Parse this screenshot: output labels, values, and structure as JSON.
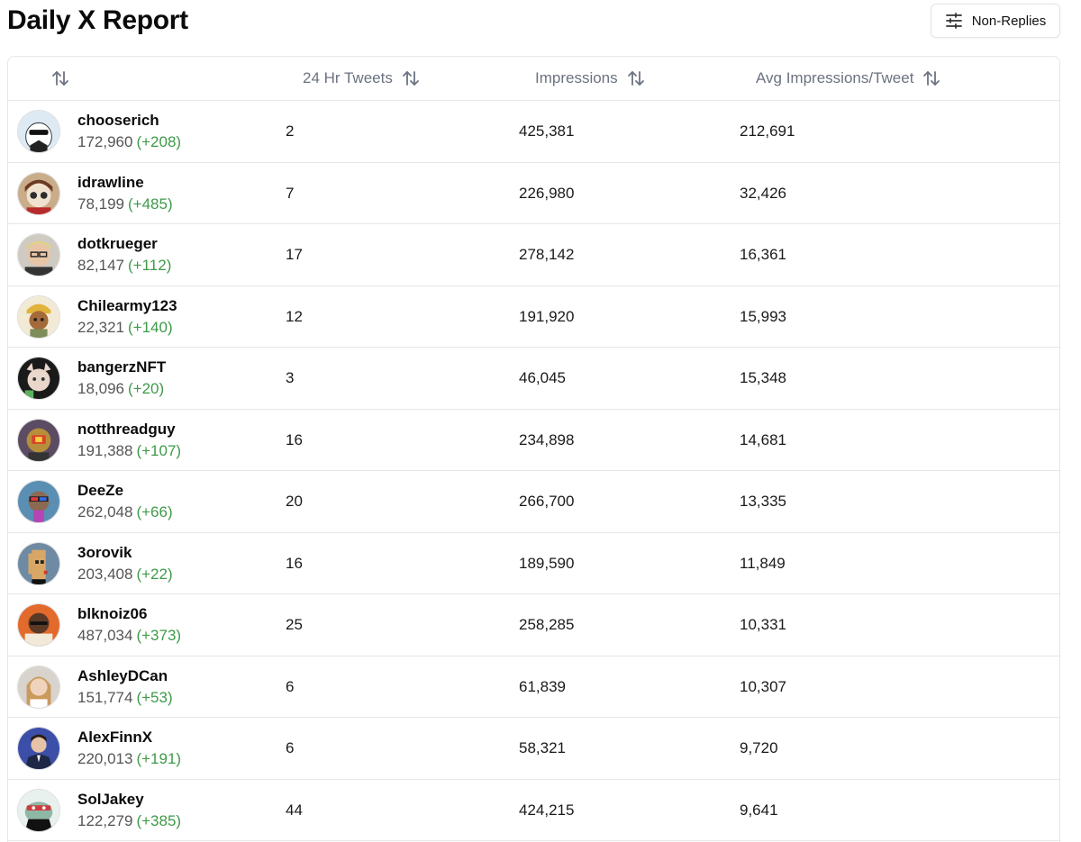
{
  "header": {
    "title": "Daily X Report",
    "filter_button": {
      "label": "Non-Replies",
      "icon": "sliders-icon"
    }
  },
  "table": {
    "columns": [
      {
        "label": "",
        "icon": "sort-arrows-icon"
      },
      {
        "label": "24 Hr Tweets",
        "icon": "sort-arrows-icon"
      },
      {
        "label": "Impressions",
        "icon": "sort-arrows-icon"
      },
      {
        "label": "Avg Impressions/Tweet",
        "icon": "sort-arrows-icon"
      }
    ],
    "rows": [
      {
        "name": "chooserich",
        "followers": "172,960",
        "delta": "(+208)",
        "tweets": "2",
        "impressions": "425,381",
        "avg": "212,691"
      },
      {
        "name": "idrawline",
        "followers": "78,199",
        "delta": "(+485)",
        "tweets": "7",
        "impressions": "226,980",
        "avg": "32,426"
      },
      {
        "name": "dotkrueger",
        "followers": "82,147",
        "delta": "(+112)",
        "tweets": "17",
        "impressions": "278,142",
        "avg": "16,361"
      },
      {
        "name": "Chilearmy123",
        "followers": "22,321",
        "delta": "(+140)",
        "tweets": "12",
        "impressions": "191,920",
        "avg": "15,993"
      },
      {
        "name": "bangerzNFT",
        "followers": "18,096",
        "delta": "(+20)",
        "tweets": "3",
        "impressions": "46,045",
        "avg": "15,348"
      },
      {
        "name": "notthreadguy",
        "followers": "191,388",
        "delta": "(+107)",
        "tweets": "16",
        "impressions": "234,898",
        "avg": "14,681"
      },
      {
        "name": "DeeZe",
        "followers": "262,048",
        "delta": "(+66)",
        "tweets": "20",
        "impressions": "266,700",
        "avg": "13,335"
      },
      {
        "name": "3orovik",
        "followers": "203,408",
        "delta": "(+22)",
        "tweets": "16",
        "impressions": "189,590",
        "avg": "11,849"
      },
      {
        "name": "blknoiz06",
        "followers": "487,034",
        "delta": "(+373)",
        "tweets": "25",
        "impressions": "258,285",
        "avg": "10,331"
      },
      {
        "name": "AshleyDCan",
        "followers": "151,774",
        "delta": "(+53)",
        "tweets": "6",
        "impressions": "61,839",
        "avg": "10,307"
      },
      {
        "name": "AlexFinnX",
        "followers": "220,013",
        "delta": "(+191)",
        "tweets": "6",
        "impressions": "58,321",
        "avg": "9,720"
      },
      {
        "name": "SolJakey",
        "followers": "122,279",
        "delta": "(+385)",
        "tweets": "44",
        "impressions": "424,215",
        "avg": "9,641"
      }
    ]
  },
  "colors": {
    "delta_green": "#3f9a49",
    "header_text": "#6b7280",
    "border": "#e6e6e6"
  }
}
